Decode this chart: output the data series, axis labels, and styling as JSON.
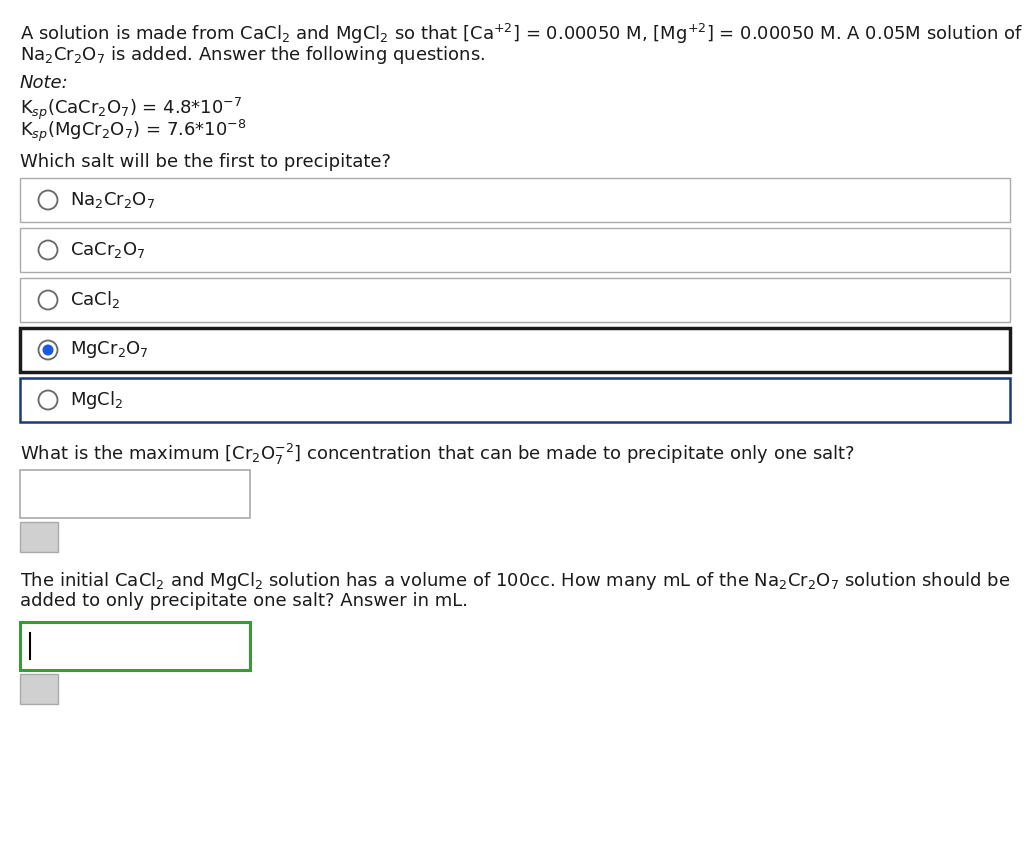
{
  "bg_color": "#ffffff",
  "text_color": "#1a1a1a",
  "title_line1": "A solution is made from CaCl$_2$ and MgCl$_2$ so that [Ca$^{+2}$] = 0.00050 M, [Mg$^{+2}$] = 0.00050 M. A 0.05M solution of",
  "title_line2": "Na$_2$Cr$_2$O$_7$ is added. Answer the following questions.",
  "note_label": "Note:",
  "note_line1": "K$_{sp}$(CaCr$_2$O$_7$) = 4.8*10$^{-7}$",
  "note_line2": "K$_{sp}$(MgCr$_2$O$_7$) = 7.6*10$^{-8}$",
  "question1": "Which salt will be the first to precipitate?",
  "options": [
    {
      "label": "Na$_2$Cr$_2$O$_7$",
      "selected": false
    },
    {
      "label": "CaCr$_2$O$_7$",
      "selected": false
    },
    {
      "label": "CaCl$_2$",
      "selected": false
    },
    {
      "label": "MgCr$_2$O$_7$",
      "selected": true
    },
    {
      "label": "MgCl$_2$",
      "selected": false
    }
  ],
  "question2": "What is the maximum [Cr$_2$O$_7^{-2}$] concentration that can be made to precipitate only one salt?",
  "question3_line1": "The initial CaCl$_2$ and MgCl$_2$ solution has a volume of 100cc. How many mL of the Na$_2$Cr$_2$O$_7$ solution should be",
  "question3_line2": "added to only precipitate one salt? Answer in mL.",
  "font_size": 13.0,
  "option_box_color_default": "#aaaaaa",
  "option_box_color_selected": "#1a1a1a",
  "option_box_color_blue": "#1a3a7a",
  "radio_fill_selected": "#1a5adf",
  "radio_border_default": "#666666",
  "input1_border": "#aaaaaa",
  "input2_border": "#3a9a3a",
  "btn_fill": "#d0d0d0",
  "btn_border": "#aaaaaa"
}
